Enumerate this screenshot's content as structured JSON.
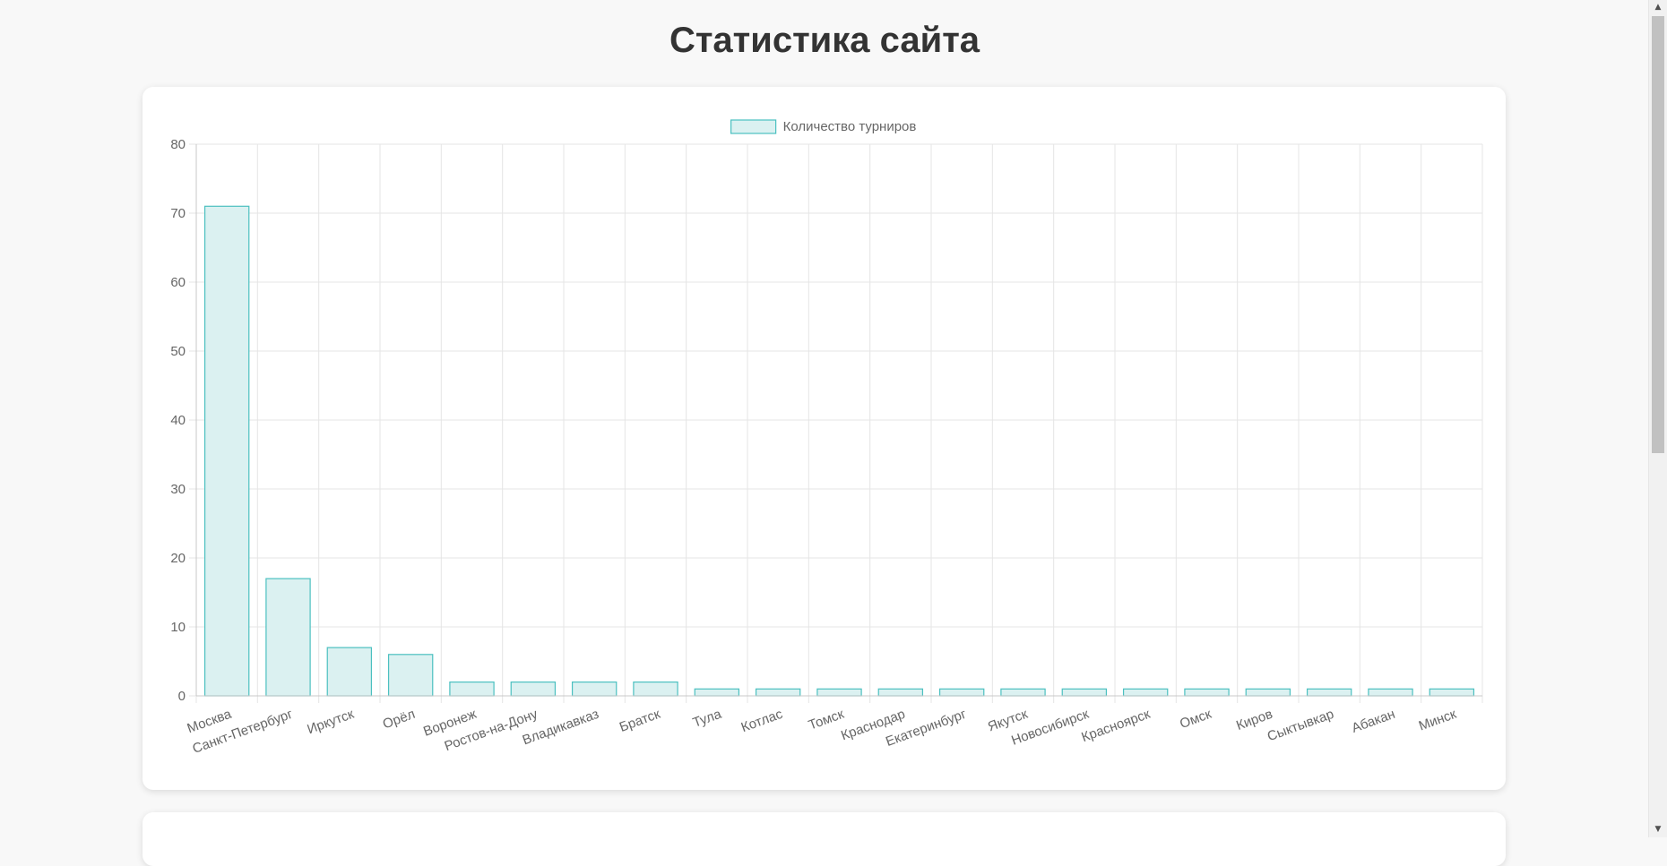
{
  "page": {
    "title": "Статистика сайта"
  },
  "chart_data": {
    "type": "bar",
    "categories": [
      "Москва",
      "Санкт-Петербург",
      "Иркутск",
      "Орёл",
      "Воронеж",
      "Ростов-на-Дону",
      "Владикавказ",
      "Братск",
      "Тула",
      "Котлас",
      "Томск",
      "Краснодар",
      "Екатеринбург",
      "Якутск",
      "Новосибирск",
      "Красноярск",
      "Омск",
      "Киров",
      "Сыктывкар",
      "Абакан",
      "Минск"
    ],
    "series": [
      {
        "name": "Количество турниров",
        "values": [
          71,
          17,
          7,
          6,
          2,
          2,
          2,
          2,
          1,
          1,
          1,
          1,
          1,
          1,
          1,
          1,
          1,
          1,
          1,
          1,
          1
        ]
      }
    ],
    "title": "",
    "xlabel": "",
    "ylabel": "",
    "ylim": [
      0,
      80
    ],
    "yticks": [
      "0",
      "10",
      "20",
      "30",
      "40",
      "50",
      "60",
      "70",
      "80"
    ],
    "grid": true,
    "legend": "top-center",
    "colors": {
      "bar_fill": "#dbf1f1",
      "bar_border": "#4bc0c0",
      "grid": "#e5e5e5",
      "axis": "#c8c8c8",
      "tick_text": "#666666"
    }
  }
}
